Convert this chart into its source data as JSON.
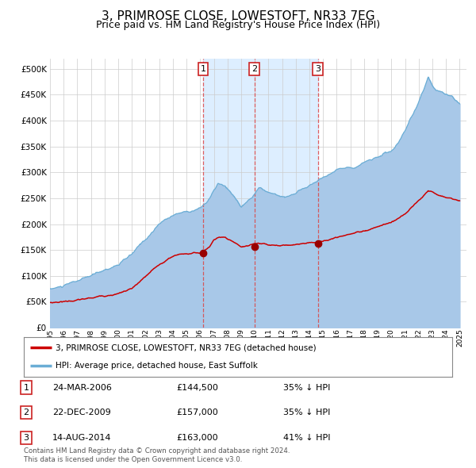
{
  "title": "3, PRIMROSE CLOSE, LOWESTOFT, NR33 7EG",
  "subtitle": "Price paid vs. HM Land Registry's House Price Index (HPI)",
  "title_fontsize": 11,
  "subtitle_fontsize": 9,
  "ytick_values": [
    0,
    50000,
    100000,
    150000,
    200000,
    250000,
    300000,
    350000,
    400000,
    450000,
    500000
  ],
  "ylim": [
    0,
    520000
  ],
  "xlim_start": 1995.0,
  "xlim_end": 2025.5,
  "hpi_color": "#a8c8e8",
  "hpi_line_color": "#6aadd5",
  "price_color": "#cc0000",
  "marker_color": "#990000",
  "vline_color": "#dd4444",
  "vspan_color": "#ddeeff",
  "grid_color": "#cccccc",
  "background_color": "#ffffff",
  "transactions": [
    {
      "label": "1",
      "date": "24-MAR-2006",
      "year": 2006.22,
      "price": 144500,
      "pct": "35%",
      "dir": "↓"
    },
    {
      "label": "2",
      "date": "22-DEC-2009",
      "year": 2009.97,
      "price": 157000,
      "pct": "35%",
      "dir": "↓"
    },
    {
      "label": "3",
      "date": "14-AUG-2014",
      "year": 2014.62,
      "price": 163000,
      "pct": "41%",
      "dir": "↓"
    }
  ],
  "legend_line1": "3, PRIMROSE CLOSE, LOWESTOFT, NR33 7EG (detached house)",
  "legend_line2": "HPI: Average price, detached house, East Suffolk",
  "footer1": "Contains HM Land Registry data © Crown copyright and database right 2024.",
  "footer2": "This data is licensed under the Open Government Licence v3.0.",
  "xtick_years": [
    1995,
    1996,
    1997,
    1998,
    1999,
    2000,
    2001,
    2002,
    2003,
    2004,
    2005,
    2006,
    2007,
    2008,
    2009,
    2010,
    2011,
    2012,
    2013,
    2014,
    2015,
    2016,
    2017,
    2018,
    2019,
    2020,
    2021,
    2022,
    2023,
    2024,
    2025
  ]
}
